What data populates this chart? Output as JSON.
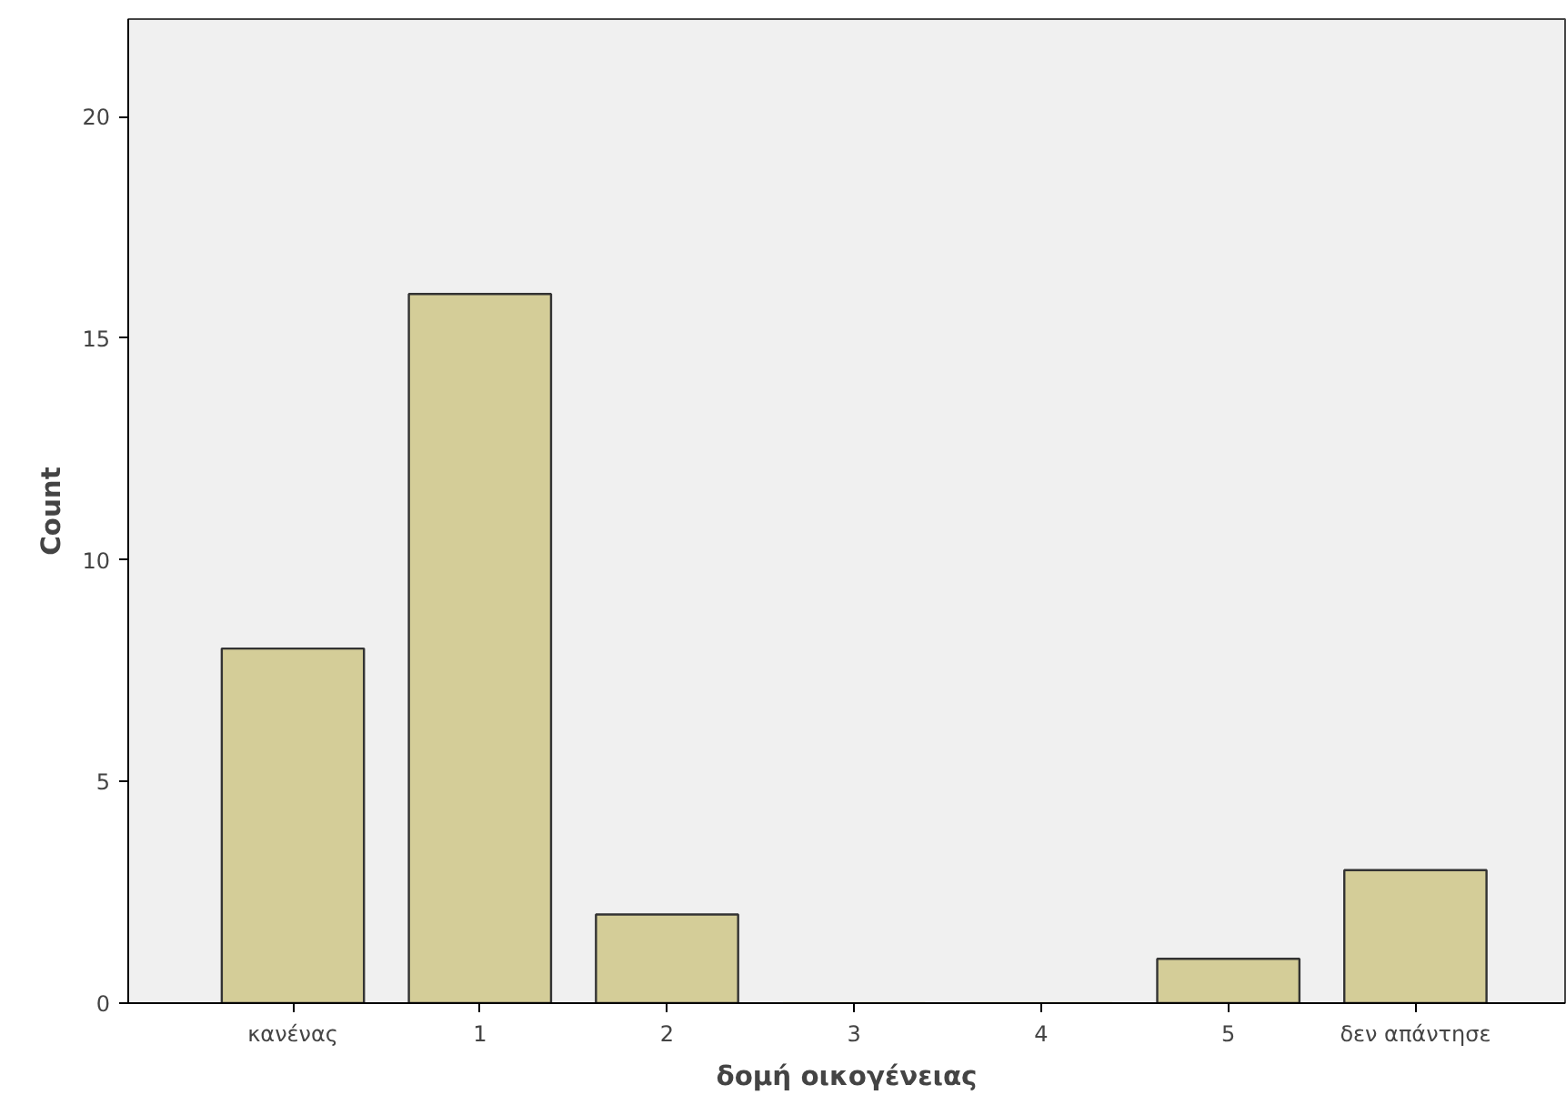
{
  "chart_data": {
    "type": "bar",
    "xlabel": "δομή οικογένειας",
    "ylabel": "Count",
    "categories": [
      "κανένας",
      "1",
      "2",
      "3",
      "4",
      "5",
      "δεν απάντησε"
    ],
    "values": [
      8,
      16,
      2,
      0,
      0,
      1,
      3
    ],
    "color": "#d4cd98",
    "ylim": [
      0,
      22.2
    ],
    "yticks": [
      0,
      5,
      10,
      15,
      20
    ],
    "grid": false
  }
}
